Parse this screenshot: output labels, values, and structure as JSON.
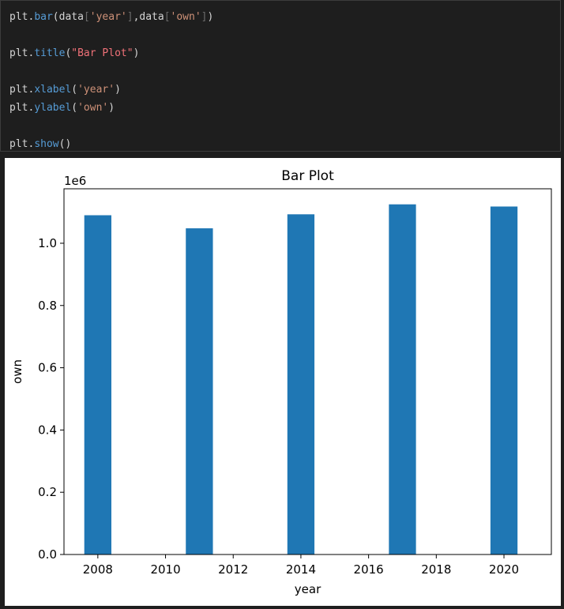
{
  "code_lines": [
    [
      {
        "t": "plt",
        "c": "var"
      },
      {
        "t": ".",
        "c": "punc"
      },
      {
        "t": "bar",
        "c": "fn"
      },
      {
        "t": "(data",
        "c": "var"
      },
      {
        "t": "[",
        "c": "brk"
      },
      {
        "t": "'year'",
        "c": "str"
      },
      {
        "t": "]",
        "c": "brk"
      },
      {
        "t": ",data",
        "c": "var"
      },
      {
        "t": "[",
        "c": "brk"
      },
      {
        "t": "'own'",
        "c": "str"
      },
      {
        "t": "]",
        "c": "brk"
      },
      {
        "t": ")",
        "c": "punc"
      }
    ],
    [],
    [
      {
        "t": "plt",
        "c": "var"
      },
      {
        "t": ".",
        "c": "punc"
      },
      {
        "t": "title",
        "c": "fn"
      },
      {
        "t": "(",
        "c": "punc"
      },
      {
        "t": "\"Bar Plot\"",
        "c": "str2"
      },
      {
        "t": ")",
        "c": "punc"
      }
    ],
    [],
    [
      {
        "t": "plt",
        "c": "var"
      },
      {
        "t": ".",
        "c": "punc"
      },
      {
        "t": "xlabel",
        "c": "fn"
      },
      {
        "t": "(",
        "c": "punc"
      },
      {
        "t": "'year'",
        "c": "str"
      },
      {
        "t": ")",
        "c": "punc"
      }
    ],
    [
      {
        "t": "plt",
        "c": "var"
      },
      {
        "t": ".",
        "c": "punc"
      },
      {
        "t": "ylabel",
        "c": "fn"
      },
      {
        "t": "(",
        "c": "punc"
      },
      {
        "t": "'own'",
        "c": "str"
      },
      {
        "t": ")",
        "c": "punc"
      }
    ],
    [],
    [
      {
        "t": "plt",
        "c": "var"
      },
      {
        "t": ".",
        "c": "punc"
      },
      {
        "t": "show",
        "c": "fn"
      },
      {
        "t": "()",
        "c": "punc"
      }
    ]
  ],
  "chart_data": {
    "type": "bar",
    "title": "Bar Plot",
    "xlabel": "year",
    "ylabel": "own",
    "y_offset_label": "1e6",
    "x": [
      2008,
      2011,
      2014,
      2017,
      2020
    ],
    "values": [
      1.09,
      1.048,
      1.093,
      1.125,
      1.118
    ],
    "bar_width": 0.8,
    "bar_color": "#1f77b4",
    "xlim": [
      2007,
      2021.4
    ],
    "ylim": [
      0,
      1.175
    ],
    "x_ticks": [
      2008,
      2010,
      2012,
      2014,
      2016,
      2018,
      2020
    ],
    "y_ticks": [
      0.0,
      0.2,
      0.4,
      0.6,
      0.8,
      1.0
    ],
    "y_tick_labels": [
      "0.0",
      "0.2",
      "0.4",
      "0.6",
      "0.8",
      "1.0"
    ],
    "grid": false
  }
}
